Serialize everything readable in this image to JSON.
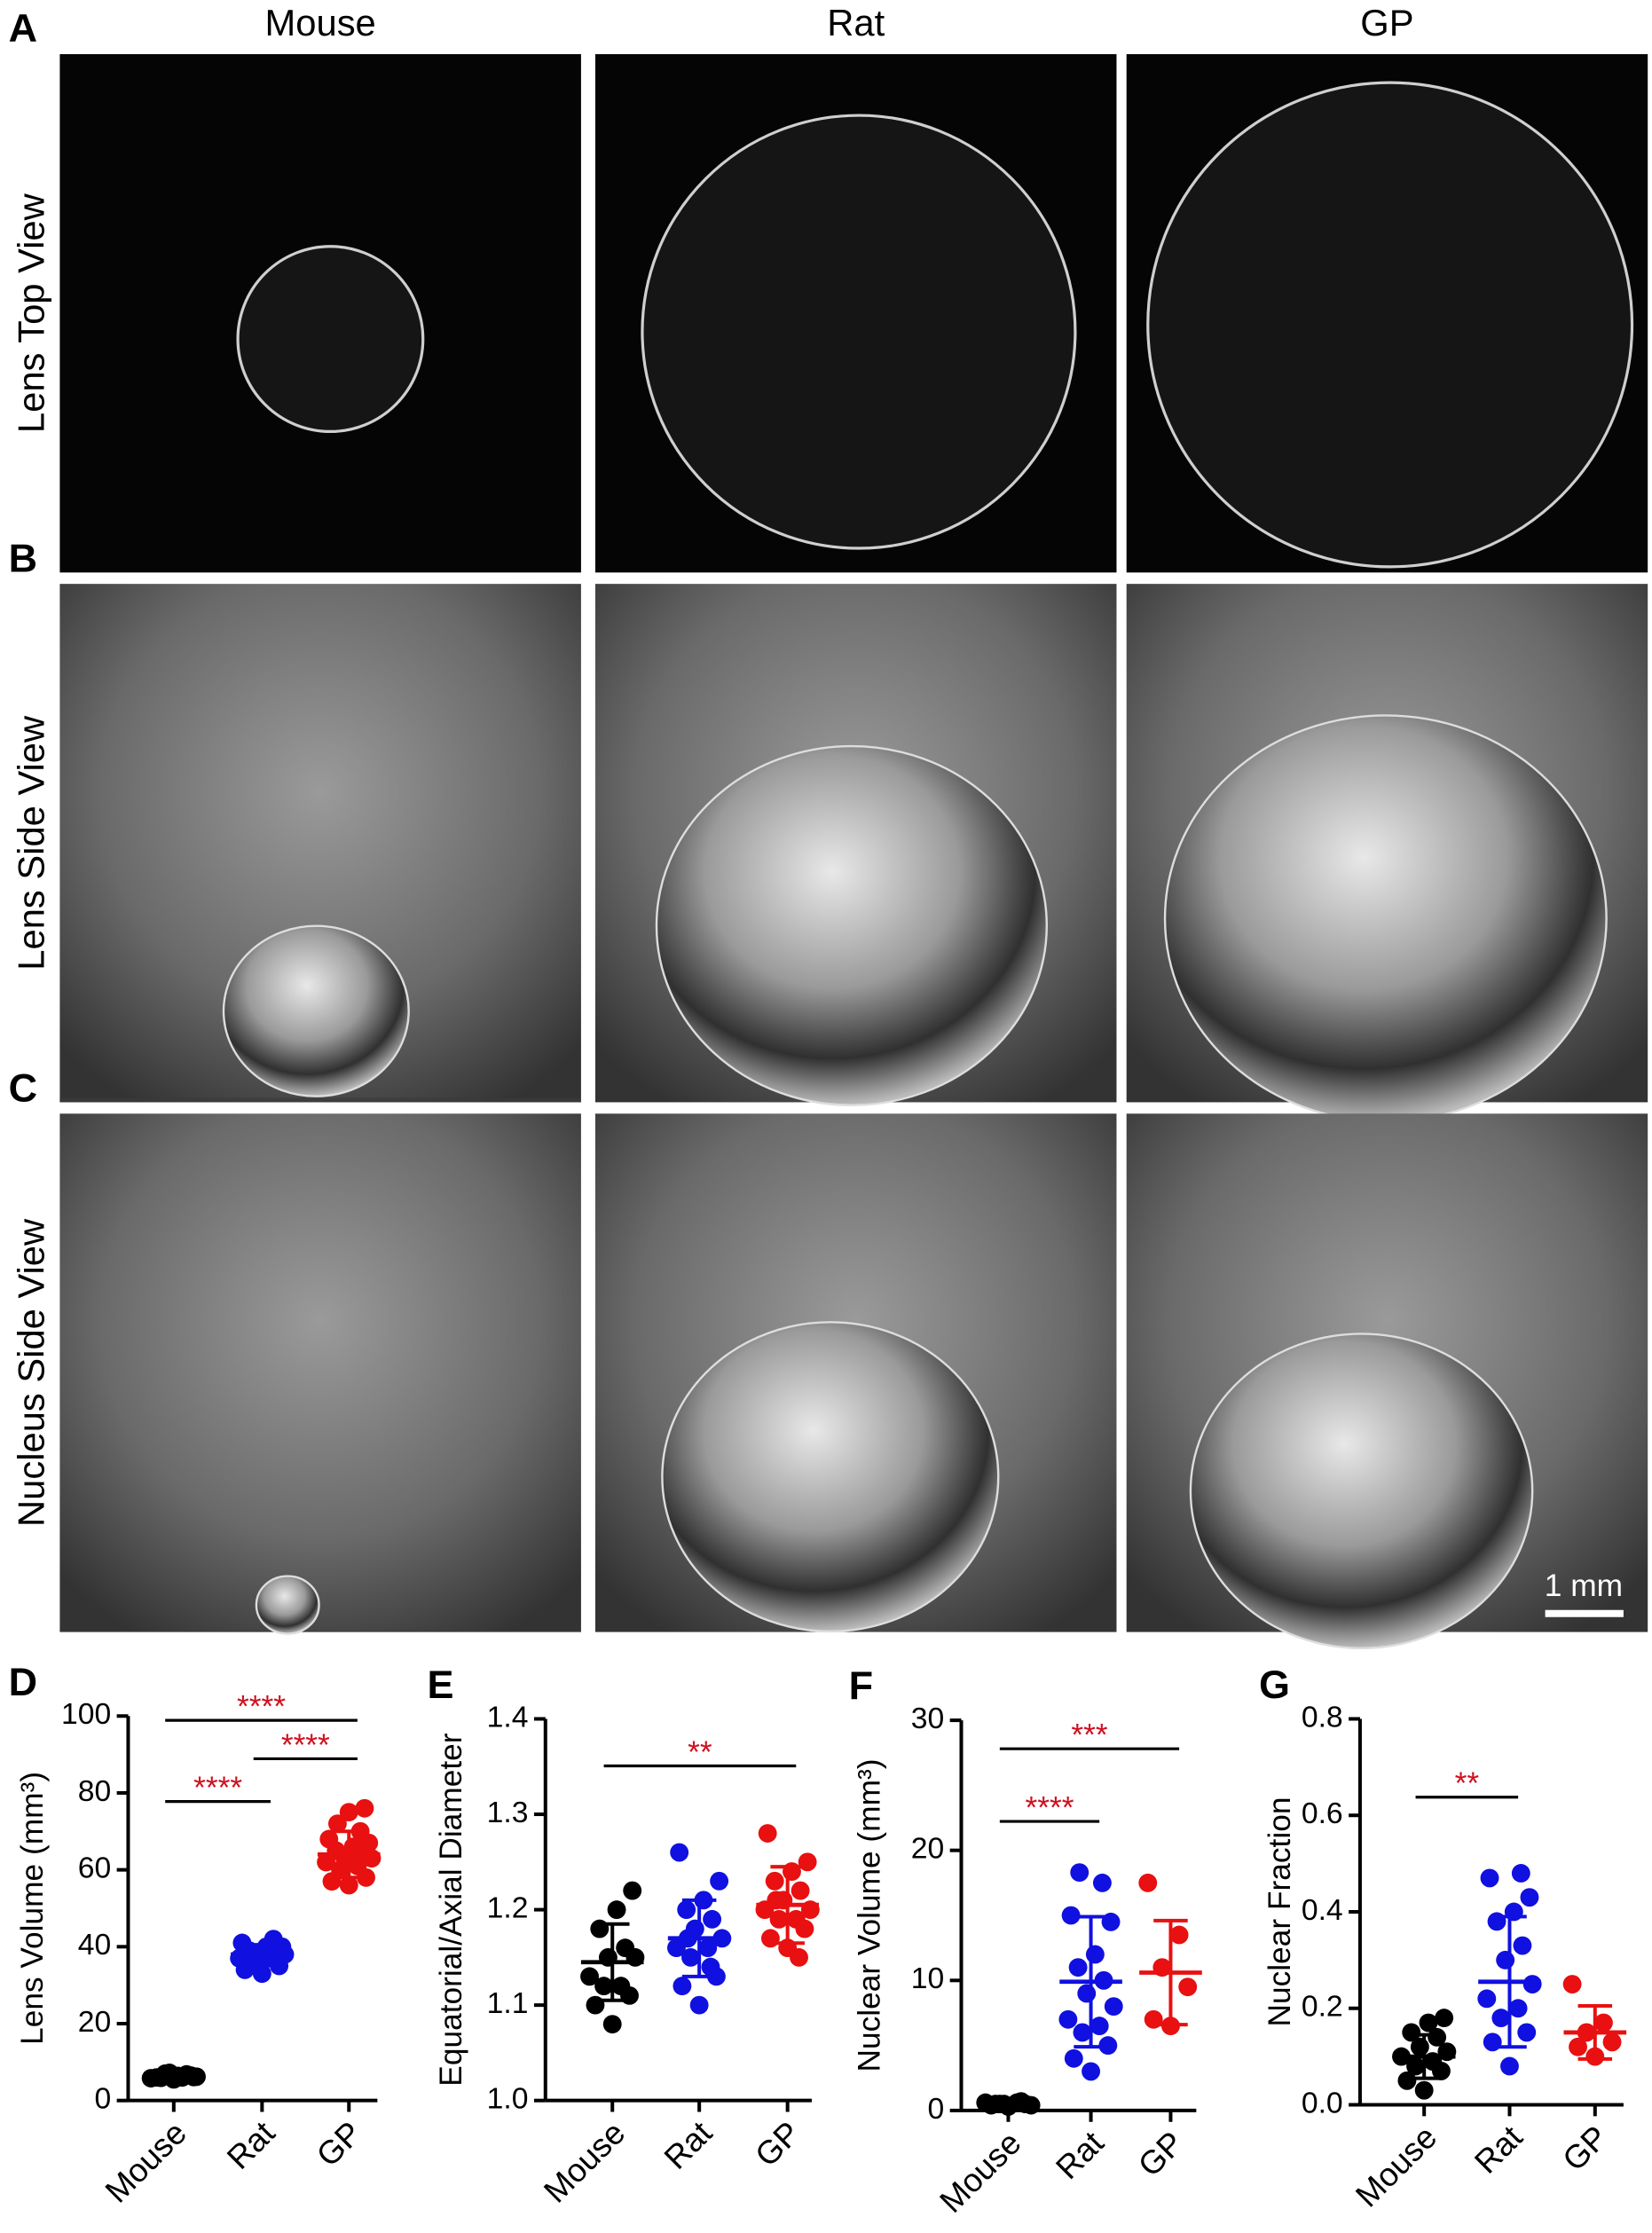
{
  "figure": {
    "columns": [
      "Mouse",
      "Rat",
      "GP"
    ],
    "rows": [
      {
        "letter": "A",
        "label": "Lens Top View"
      },
      {
        "letter": "B",
        "label": "Lens Side View"
      },
      {
        "letter": "C",
        "label": "Nucleus Side View"
      }
    ],
    "scale_bar": "1 mm"
  },
  "chart_data": [
    {
      "type": "dot",
      "panel": "D",
      "ylabel": "Lens Volume (mm³)",
      "categories": [
        "Mouse",
        "Rat",
        "GP"
      ],
      "colors": [
        "#000000",
        "#1010e0",
        "#e81010"
      ],
      "values": [
        [
          5.5,
          6,
          6.5,
          7,
          6,
          5.8,
          6.2,
          7.2,
          6.8,
          5.9,
          6.4,
          6.1
        ],
        [
          33,
          34,
          35,
          36,
          37,
          37,
          38,
          38,
          39,
          39,
          40,
          40,
          41,
          42,
          36
        ],
        [
          56,
          57,
          58,
          60,
          61,
          62,
          63,
          63,
          64,
          65,
          66,
          67,
          68,
          70,
          72,
          75,
          76
        ]
      ],
      "means": [
        6.3,
        38,
        64
      ],
      "sds": [
        0.6,
        2.5,
        6
      ],
      "ylim": [
        0,
        100
      ],
      "yticks": [
        0,
        20,
        40,
        60,
        80,
        100
      ],
      "annotations": [
        {
          "text": "****",
          "from": "Mouse",
          "to": "Rat"
        },
        {
          "text": "****",
          "from": "Rat",
          "to": "GP"
        },
        {
          "text": "****",
          "from": "Mouse",
          "to": "GP"
        }
      ]
    },
    {
      "type": "dot",
      "panel": "E",
      "ylabel": "Equatorial/Axial Diameter",
      "categories": [
        "Mouse",
        "Rat",
        "GP"
      ],
      "colors": [
        "#000000",
        "#1010e0",
        "#e81010"
      ],
      "values": [
        [
          1.08,
          1.1,
          1.11,
          1.12,
          1.12,
          1.13,
          1.15,
          1.15,
          1.16,
          1.18,
          1.2,
          1.22
        ],
        [
          1.1,
          1.12,
          1.13,
          1.15,
          1.16,
          1.16,
          1.17,
          1.18,
          1.19,
          1.2,
          1.21,
          1.23,
          1.26,
          1.14,
          1.17
        ],
        [
          1.16,
          1.17,
          1.18,
          1.19,
          1.19,
          1.2,
          1.2,
          1.21,
          1.22,
          1.23,
          1.24,
          1.25,
          1.28,
          1.15,
          1.21
        ]
      ],
      "means": [
        1.145,
        1.17,
        1.205
      ],
      "sds": [
        0.04,
        0.04,
        0.04
      ],
      "ylim": [
        1,
        1.4
      ],
      "yticks": [
        {
          "value": 1,
          "label": "1.0"
        },
        1.1,
        1.2,
        1.3,
        1.4
      ],
      "annotations": [
        {
          "text": "**",
          "from": "Mouse",
          "to": "GP"
        }
      ]
    },
    {
      "type": "dot",
      "panel": "F",
      "ylabel": "Nuclear Volume (mm³)",
      "categories": [
        "Mouse",
        "Rat",
        "GP"
      ],
      "colors": [
        "#000000",
        "#1010e0",
        "#e81010"
      ],
      "values": [
        [
          0.3,
          0.4,
          0.5,
          0.5,
          0.6,
          0.6,
          0.4,
          0.5,
          0.7,
          0.5
        ],
        [
          3,
          4,
          5,
          6,
          6.5,
          7,
          8,
          9,
          10,
          11,
          12,
          14.5,
          15,
          17.5,
          18.3
        ],
        [
          6.5,
          7,
          9.5,
          11,
          13.5,
          17.5
        ]
      ],
      "means": [
        0.5,
        9.9,
        10.6
      ],
      "sds": [
        0.1,
        5,
        4
      ],
      "ylim": [
        0,
        30
      ],
      "yticks": [
        0,
        10,
        20,
        30
      ],
      "annotations": [
        {
          "text": "****",
          "from": "Mouse",
          "to": "Rat"
        },
        {
          "text": "***",
          "from": "Mouse",
          "to": "GP"
        }
      ]
    },
    {
      "type": "dot",
      "panel": "G",
      "ylabel": "Nuclear Fraction",
      "categories": [
        "Mouse",
        "Rat",
        "GP"
      ],
      "colors": [
        "#000000",
        "#1010e0",
        "#e81010"
      ],
      "values": [
        [
          0.03,
          0.05,
          0.07,
          0.08,
          0.09,
          0.1,
          0.11,
          0.12,
          0.14,
          0.15,
          0.17,
          0.18
        ],
        [
          0.08,
          0.13,
          0.15,
          0.18,
          0.2,
          0.22,
          0.25,
          0.3,
          0.33,
          0.38,
          0.4,
          0.43,
          0.47,
          0.48
        ],
        [
          0.1,
          0.12,
          0.13,
          0.15,
          0.17,
          0.25
        ]
      ],
      "means": [
        0.1,
        0.255,
        0.15
      ],
      "sds": [
        0.045,
        0.135,
        0.055
      ],
      "ylim": [
        0,
        0.8
      ],
      "yticks": [
        {
          "value": 0,
          "label": "0.0"
        },
        0.2,
        0.4,
        0.6,
        0.8
      ],
      "annotations": [
        {
          "text": "**",
          "from": "Mouse",
          "to": "Rat"
        }
      ]
    }
  ]
}
